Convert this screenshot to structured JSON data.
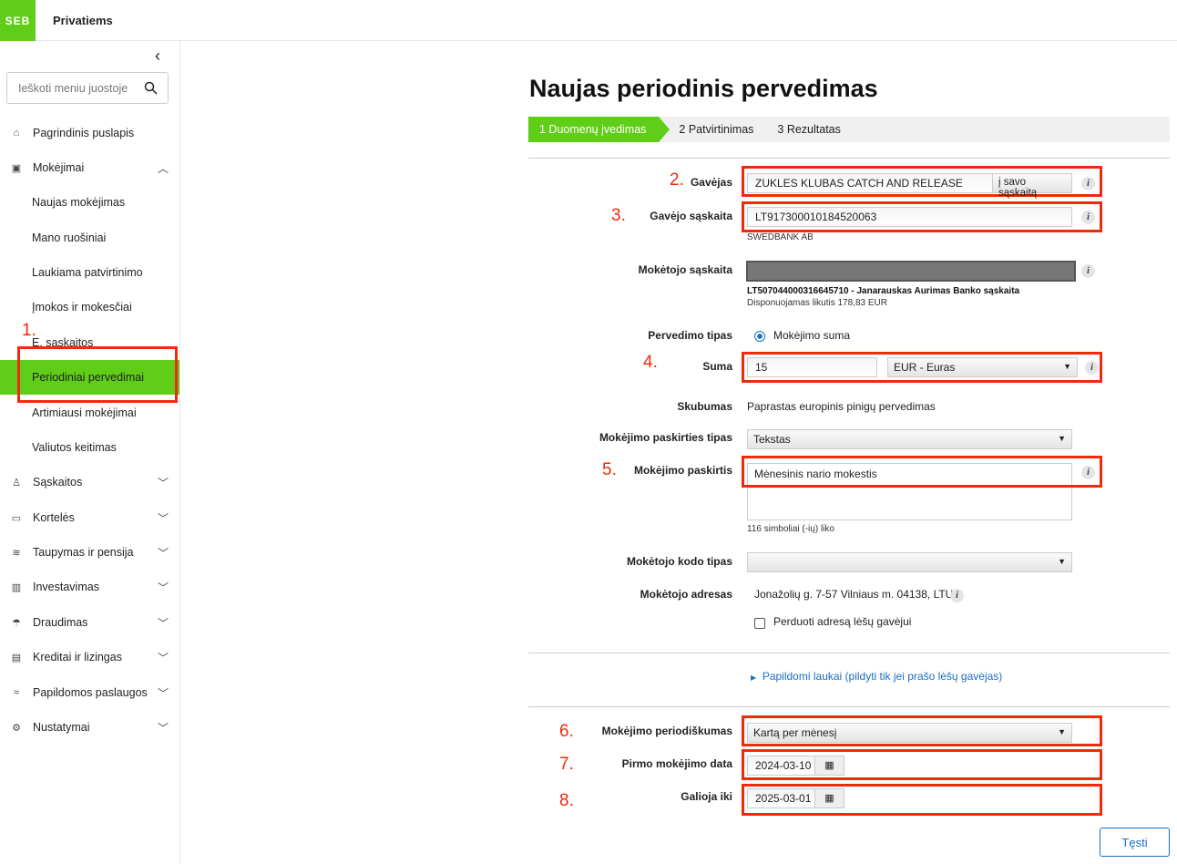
{
  "header": {
    "logo": "SEB",
    "brand": "Privatiems"
  },
  "sidebar": {
    "search_placeholder": "Ieškoti meniu juostoje",
    "items": [
      {
        "label": "Pagrindinis puslapis",
        "icon": "home-icon"
      },
      {
        "label": "Mokėjimai",
        "icon": "payments-icon"
      },
      {
        "label": "Naujas mokėjimas"
      },
      {
        "label": "Mano ruošiniai"
      },
      {
        "label": "Laukiama patvirtinimo"
      },
      {
        "label": "Įmokos ir mokesčiai"
      },
      {
        "label": "E. sąskaitos"
      },
      {
        "label": "Periodiniai pervedimai",
        "active": true
      },
      {
        "label": "Artimiausi mokėjimai"
      },
      {
        "label": "Valiutos keitimas"
      },
      {
        "label": "Sąskaitos",
        "icon": "user-icon"
      },
      {
        "label": "Kortelės",
        "icon": "card-icon"
      },
      {
        "label": "Taupymas ir pensija",
        "icon": "savings-icon"
      },
      {
        "label": "Investavimas",
        "icon": "chart-icon"
      },
      {
        "label": "Draudimas",
        "icon": "umbrella-icon"
      },
      {
        "label": "Kreditai ir lizingas",
        "icon": "document-icon"
      },
      {
        "label": "Papildomos paslaugos",
        "icon": "services-icon"
      },
      {
        "label": "Nustatymai",
        "icon": "gear-icon"
      }
    ]
  },
  "page": {
    "title": "Naujas periodinis pervedimas",
    "steps": [
      "1  Duomenų įvedimas",
      "2  Patvirtinimas",
      "3  Rezultatas"
    ],
    "annotations": [
      "1.",
      "2.",
      "3.",
      "4.",
      "5.",
      "6.",
      "7.",
      "8."
    ],
    "recipient": {
      "label": "Gavėjas",
      "value": "ZUKLES KLUBAS CATCH AND RELEASE",
      "own_button": "į savo sąskaitą"
    },
    "recipient_account": {
      "label": "Gavėjo sąskaita",
      "value": "LT917300010184520063",
      "bank": "SWEDBANK AB"
    },
    "payer_account": {
      "label": "Mokėtojo sąskaita",
      "details": "LT507044000316645710 - Janarauskas Aurimas Banko sąskaita",
      "balance": "Disponuojamas likutis 178,83 EUR"
    },
    "transfer_type": {
      "label": "Pervedimo tipas",
      "option": "Mokėjimo suma"
    },
    "amount": {
      "label": "Suma",
      "value": "15",
      "currency": "EUR - Euras"
    },
    "urgency": {
      "label": "Skubumas",
      "value": "Paprastas europinis pinigų pervedimas"
    },
    "purpose_type": {
      "label": "Mokėjimo paskirties tipas",
      "value": "Tekstas"
    },
    "purpose": {
      "label": "Mokėjimo paskirtis",
      "value": "Mėnesinis nario mokestis",
      "remaining": "116 simboliai (-ių) liko"
    },
    "payer_code_type": {
      "label": "Mokėtojo kodo tipas",
      "value": ""
    },
    "payer_address": {
      "label": "Mokėtojo adresas",
      "value": "Jonažolių g. 7-57 Vilniaus m. 04138, LTU",
      "checkbox": "Perduoti adresą lėšų gavėjui"
    },
    "extra_fields": "Papildomi laukai (pildyti tik jei prašo lėšų gavėjas)",
    "periodicity": {
      "label": "Mokėjimo periodiškumas",
      "value": "Kartą per mėnesį"
    },
    "first_date": {
      "label": "Pirmo mokėjimo data",
      "value": "2024-03-10"
    },
    "valid_until": {
      "label": "Galioja iki",
      "value": "2025-03-01"
    },
    "continue": "Tęsti"
  },
  "colors": {
    "brand": "#60cd18",
    "annotation": "#f02a0a",
    "link": "#1a6fc0"
  }
}
